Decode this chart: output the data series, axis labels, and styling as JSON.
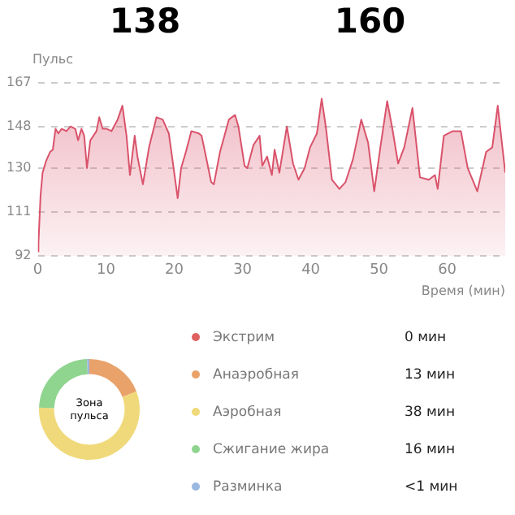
{
  "chart_data": [
    {
      "type": "area",
      "ylabel": "Пульс",
      "xlabel": "Время (мин)",
      "annotations": [
        "138",
        "160"
      ],
      "color": "#d9536b",
      "x": [
        0,
        0.1,
        0.4,
        0.7,
        1.2,
        1.8,
        2.2,
        2.6,
        3,
        3.5,
        4.2,
        4.8,
        5.5,
        5.9,
        6.4,
        6.8,
        7.2,
        7.7,
        8.6,
        9,
        9.5,
        10.1,
        10.8,
        11.7,
        12.4,
        13,
        13.5,
        14.2,
        14.6,
        15.4,
        16.3,
        17.4,
        18.3,
        19.2,
        19.9,
        20.5,
        21,
        21.7,
        22.5,
        23.6,
        24,
        24.5,
        25.4,
        25.8,
        26.7,
        28,
        28.9,
        29.4,
        30.3,
        30.7,
        31.6,
        32.5,
        32.9,
        33.6,
        34.3,
        34.7,
        35.4,
        36.5,
        37.4,
        38.2,
        39.1,
        39.9,
        40.9,
        41.6,
        42.2,
        43.1,
        44.2,
        45.1,
        46.2,
        47.4,
        48.4,
        49.3,
        50.2,
        51.2,
        51.9,
        52.8,
        53.7,
        54.9,
        56,
        57.3,
        58.2,
        58.6,
        59.5,
        60.8,
        62,
        63,
        64.4,
        65.7,
        66.6,
        67.4,
        68.5
      ],
      "values": [
        94,
        98,
        118,
        128,
        133,
        137,
        138,
        147,
        145,
        147,
        146,
        148,
        147,
        142,
        147,
        144,
        130,
        142,
        146,
        152,
        147,
        147,
        146,
        151,
        157,
        144,
        127,
        144,
        135,
        123,
        139,
        152,
        151,
        145,
        130,
        117,
        130,
        137,
        146,
        145,
        144,
        137,
        124,
        123,
        137,
        151,
        153,
        148,
        131,
        130,
        140,
        144,
        131,
        135,
        127,
        138,
        128,
        148,
        132,
        125,
        130,
        139,
        145,
        160,
        148,
        125,
        121,
        124,
        134,
        151,
        141,
        120,
        139,
        159,
        148,
        132,
        139,
        156,
        126,
        125,
        127,
        121,
        144,
        146,
        146,
        130,
        120,
        137,
        139,
        157,
        128
      ],
      "xlim": [
        0,
        68.5
      ],
      "xticks": [
        0,
        10,
        20,
        30,
        40,
        50,
        60
      ],
      "ylim": [
        92,
        167
      ],
      "yticks": [
        92,
        111,
        130,
        148,
        167
      ],
      "grid": "y"
    },
    {
      "type": "donut",
      "title": "Зона пульса",
      "legend": "right",
      "categories": [
        "Экстрим",
        "Анаэробная",
        "Аэробная",
        "Сжигание жира",
        "Разминка"
      ],
      "values": [
        0,
        13,
        38,
        16,
        0.5
      ],
      "value_labels": [
        "0 мин",
        "13 мин",
        "38 мин",
        "16 мин",
        "<1 мин"
      ],
      "colors": [
        "#e06060",
        "#e8a26a",
        "#f0d97a",
        "#8fd48f",
        "#9ab8e0"
      ]
    }
  ]
}
